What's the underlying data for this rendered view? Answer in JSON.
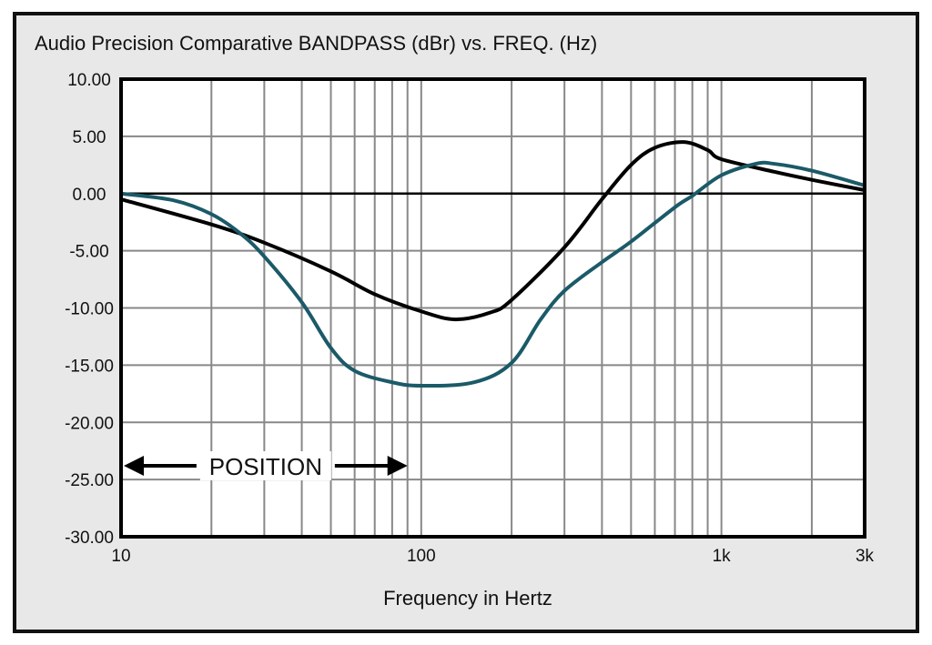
{
  "chart_data": {
    "type": "line",
    "title": "Audio Precision Comparative BANDPASS (dBr) vs. FREQ. (Hz)",
    "xlabel": "Frequency in Hertz",
    "ylabel": "",
    "xscale": "log",
    "xlim": [
      10,
      3000
    ],
    "ylim": [
      -30,
      10
    ],
    "grid": true,
    "x_ticks": [
      {
        "value": 10,
        "label": "10"
      },
      {
        "value": 100,
        "label": "100"
      },
      {
        "value": 1000,
        "label": "1k"
      },
      {
        "value": 3000,
        "label": "3k"
      }
    ],
    "y_ticks": [
      {
        "value": 10,
        "label": "10.00"
      },
      {
        "value": 5,
        "label": "5.00"
      },
      {
        "value": 0,
        "label": "0.00"
      },
      {
        "value": -5,
        "label": "-5.00"
      },
      {
        "value": -10,
        "label": "-10.00"
      },
      {
        "value": -15,
        "label": "-15.00"
      },
      {
        "value": -20,
        "label": "-20.00"
      },
      {
        "value": -25,
        "label": "-25.00"
      },
      {
        "value": -30,
        "label": "-30.00"
      }
    ],
    "annotation": {
      "text": "POSITION",
      "x_range": [
        10,
        90
      ],
      "y": -23.8
    },
    "series": [
      {
        "name": "black",
        "color": "#000000",
        "x": [
          10,
          20,
          30,
          50,
          70,
          100,
          130,
          170,
          200,
          300,
          400,
          500,
          600,
          750,
          900,
          1000,
          1500,
          2000,
          3000
        ],
        "y": [
          -0.5,
          -2.7,
          -4.3,
          -6.8,
          -8.8,
          -10.3,
          -11.0,
          -10.4,
          -9.3,
          -4.7,
          -0.5,
          2.5,
          4.0,
          4.5,
          3.8,
          3.0,
          1.9,
          1.2,
          0.3
        ]
      },
      {
        "name": "teal",
        "color": "#1b5a68",
        "x": [
          10,
          15,
          20,
          25,
          30,
          40,
          50,
          60,
          80,
          100,
          150,
          200,
          250,
          300,
          400,
          500,
          700,
          800,
          1000,
          1300,
          1500,
          2000,
          3000
        ],
        "y": [
          0,
          -0.6,
          -1.8,
          -3.5,
          -5.5,
          -9.5,
          -13.5,
          -15.5,
          -16.5,
          -16.8,
          -16.5,
          -14.8,
          -11.0,
          -8.5,
          -6.0,
          -4.2,
          -1.2,
          -0.2,
          1.6,
          2.6,
          2.6,
          2.0,
          0.7
        ]
      }
    ]
  }
}
